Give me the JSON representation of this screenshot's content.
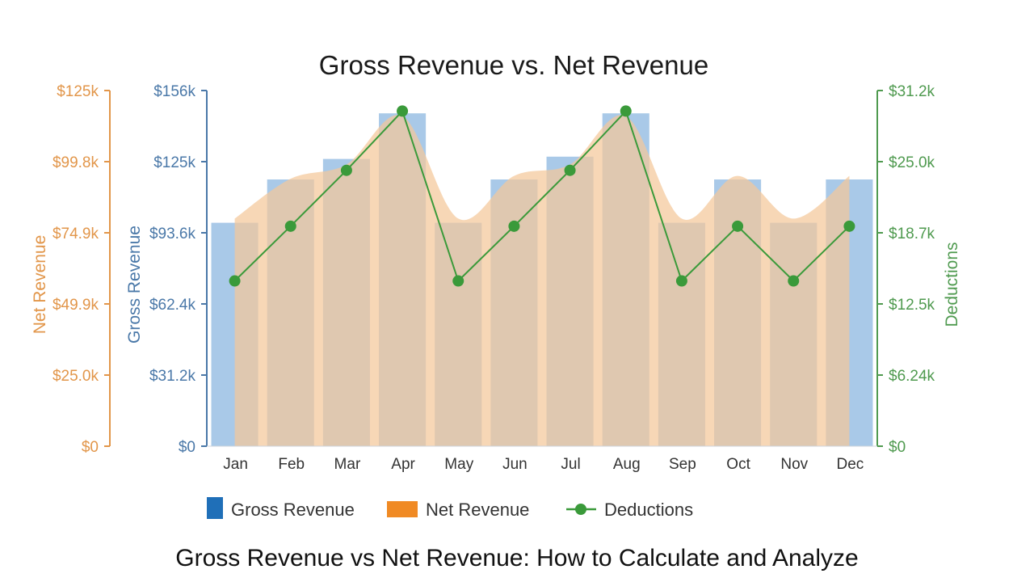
{
  "chart_data": {
    "type": "bar",
    "title": "Gross Revenue vs. Net Revenue",
    "categories": [
      "Jan",
      "Feb",
      "Mar",
      "Apr",
      "May",
      "Jun",
      "Jul",
      "Aug",
      "Sep",
      "Oct",
      "Nov",
      "Dec"
    ],
    "series": [
      {
        "name": "Gross Revenue",
        "type": "bar",
        "axis": "left-inner",
        "color": "#1f6fb8",
        "values": [
          98000,
          117000,
          126000,
          146000,
          98000,
          117000,
          127000,
          146000,
          98000,
          117000,
          98000,
          117000
        ]
      },
      {
        "name": "Net Revenue",
        "type": "area",
        "axis": "left-outer",
        "color": "#f08a24",
        "values": [
          80000,
          94000,
          99000,
          116000,
          80000,
          95000,
          99000,
          116000,
          80000,
          95000,
          80000,
          95000
        ]
      },
      {
        "name": "Deductions",
        "type": "line",
        "axis": "right",
        "color": "#3a9a3a",
        "values": [
          14500,
          19300,
          24200,
          29400,
          14500,
          19300,
          24200,
          29400,
          14500,
          19300,
          14500,
          19300
        ]
      }
    ],
    "axes": {
      "left_outer": {
        "label": "Net Revenue",
        "ticks": [
          "$0",
          "$25.0k",
          "$49.9k",
          "$74.9k",
          "$99.8k",
          "$125k"
        ],
        "range": [
          0,
          125000
        ]
      },
      "left_inner": {
        "label": "Gross Revenue",
        "ticks": [
          "$0",
          "$31.2k",
          "$62.4k",
          "$93.6k",
          "$125k",
          "$156k"
        ],
        "range": [
          0,
          156000
        ]
      },
      "right": {
        "label": "Deductions",
        "ticks": [
          "$0",
          "$6.24k",
          "$12.5k",
          "$18.7k",
          "$25.0k",
          "$31.2k"
        ],
        "range": [
          0,
          31200
        ]
      }
    },
    "legend": {
      "position": "bottom",
      "items": [
        "Gross Revenue",
        "Net Revenue",
        "Deductions"
      ]
    },
    "grid": false
  },
  "caption": "Gross Revenue vs Net Revenue: How to Calculate and Analyze",
  "colors": {
    "gross_axis": "#4a78a8",
    "net_axis": "#e2964a",
    "deductions_axis": "#4f9a4f",
    "bar_fill": "#a9c9e8",
    "area_fill": "#f4c79a"
  }
}
